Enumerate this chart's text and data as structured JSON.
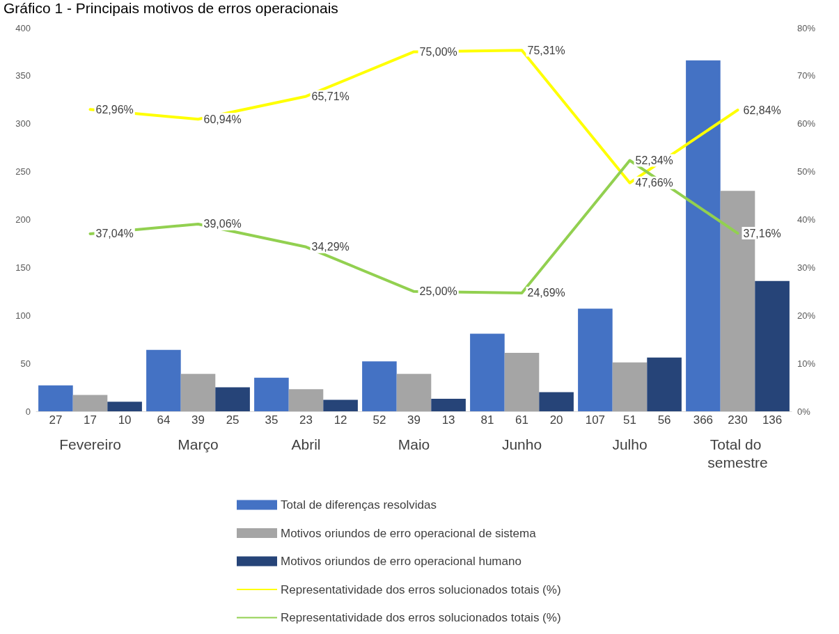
{
  "chart_data": {
    "type": "bar",
    "title": "Gráfico 1 - Principais motivos de erros operacionais",
    "categories": [
      "Fevereiro",
      "Março",
      "Abril",
      "Maio",
      "Junho",
      "Julho",
      "Total do semestre"
    ],
    "series": [
      {
        "name": "Total de diferenças resolvidas",
        "color": "#4472c4",
        "values": [
          27,
          64,
          35,
          52,
          81,
          107,
          366
        ],
        "value_labels": [
          "27",
          "64",
          "35",
          "52",
          "81",
          "107",
          "366"
        ]
      },
      {
        "name": "Motivos oriundos de erro operacional de sistema",
        "color": "#a5a5a5",
        "values": [
          17,
          39,
          23,
          39,
          61,
          51,
          230
        ],
        "value_labels": [
          "17",
          "39",
          "23",
          "39",
          "61",
          "51",
          "230"
        ]
      },
      {
        "name": "Motivos oriundos de erro operacional humano",
        "color": "#264478",
        "values": [
          10,
          25,
          12,
          13,
          20,
          56,
          136
        ],
        "value_labels": [
          "10",
          "25",
          "12",
          "13",
          "20",
          "56",
          "136"
        ]
      },
      {
        "name": "Representatividade dos erros solucionados totais (%)",
        "type": "line",
        "axis": "y2",
        "color": "#ffff00",
        "values": [
          62.96,
          60.94,
          65.71,
          75.0,
          75.31,
          47.66,
          62.84
        ],
        "value_labels": [
          "62,96%",
          "60,94%",
          "65,71%",
          "75,00%",
          "75,31%",
          "47,66%",
          "62,84%"
        ]
      },
      {
        "name": "Representatividade dos erros solucionados totais (%)",
        "type": "line",
        "axis": "y2",
        "color": "#92d050",
        "values": [
          37.04,
          39.06,
          34.29,
          25.0,
          24.69,
          52.34,
          37.16
        ],
        "value_labels": [
          "37,04%",
          "39,06%",
          "34,29%",
          "25,00%",
          "24,69%",
          "52,34%",
          "37,16%"
        ]
      }
    ],
    "ylim": [
      0,
      400
    ],
    "yticks": [
      0,
      50,
      100,
      150,
      200,
      250,
      300,
      350,
      400
    ],
    "y2lim": [
      0,
      80
    ],
    "y2ticks": [
      {
        "value": 0,
        "label": "0%"
      },
      {
        "value": 10,
        "label": "10%"
      },
      {
        "value": 20,
        "label": "20%"
      },
      {
        "value": 30,
        "label": "30%"
      },
      {
        "value": 40,
        "label": "40%"
      },
      {
        "value": 50,
        "label": "50%"
      },
      {
        "value": 60,
        "label": "60%"
      },
      {
        "value": 70,
        "label": "70%"
      },
      {
        "value": 80,
        "label": "80%"
      }
    ],
    "grid": false,
    "legend": "bottom",
    "marker": "none",
    "line_style": "solid"
  }
}
